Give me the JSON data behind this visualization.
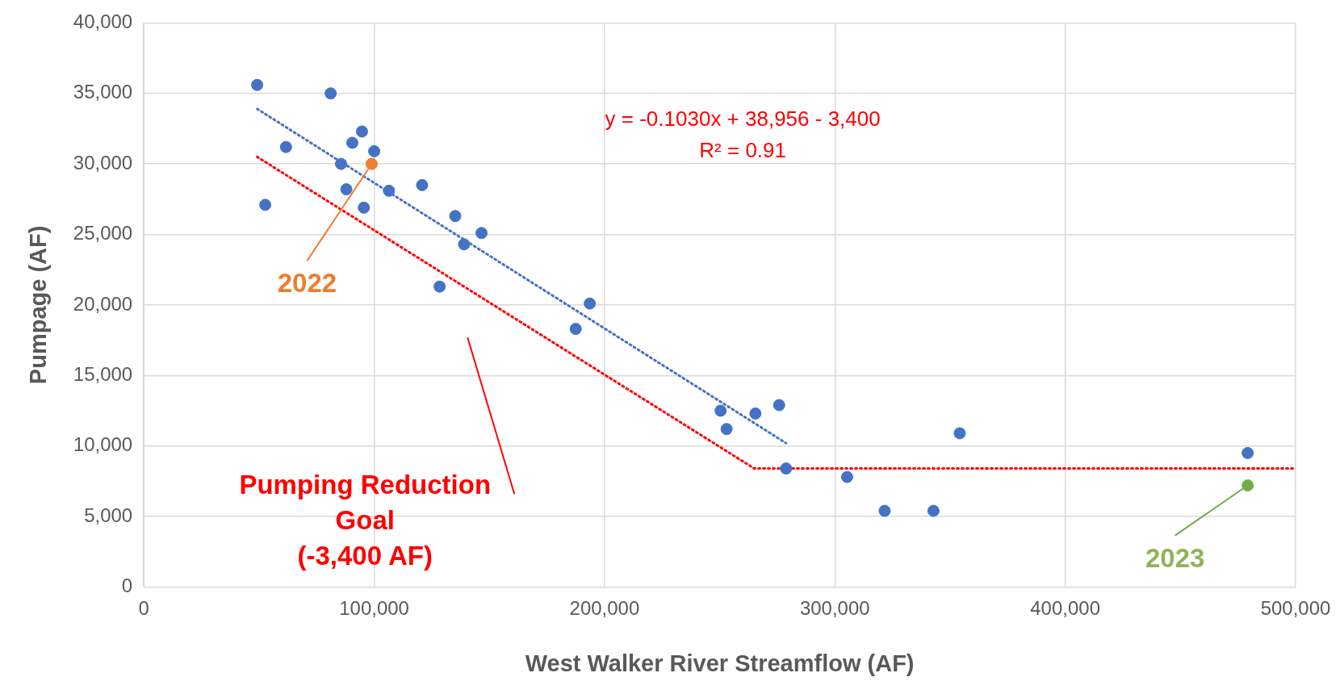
{
  "chart_data": {
    "type": "scatter",
    "xlabel": "West Walker River Streamflow (AF)",
    "ylabel": "Pumpage (AF)",
    "xlim": [
      0,
      500000
    ],
    "xticks": [
      0,
      {
        "value": 100000,
        "label": "100,000"
      },
      {
        "value": 200000,
        "label": "200,000"
      },
      {
        "value": 300000,
        "label": "300,000"
      },
      {
        "value": 400000,
        "label": "400,000"
      },
      {
        "value": 500000,
        "label": "500,000"
      }
    ],
    "ylim": [
      0,
      40000
    ],
    "yticks": [
      0,
      {
        "value": 5000,
        "label": "5,000"
      },
      {
        "value": 10000,
        "label": "10,000"
      },
      {
        "value": 15000,
        "label": "15,000"
      },
      {
        "value": 20000,
        "label": "20,000"
      },
      {
        "value": 25000,
        "label": "25,000"
      },
      {
        "value": 30000,
        "label": "30,000"
      },
      {
        "value": 35000,
        "label": "35,000"
      },
      {
        "value": 40000,
        "label": "40,000"
      }
    ],
    "grid": true,
    "marker": "circle",
    "series": [
      {
        "color": "#4472c4",
        "x": [
          49200,
          81100,
          61700,
          52700,
          94700,
          90500,
          100000,
          85600,
          87900,
          95500,
          106400,
          120800,
          135200,
          146600,
          139000,
          128400,
          193600,
          187500,
          250400,
          253000,
          265500,
          275800,
          278800,
          305300,
          321600,
          342800,
          354200,
          479200
        ],
        "values": [
          35600,
          35000,
          31200,
          27100,
          32300,
          31500,
          30900,
          30000,
          28200,
          26900,
          28100,
          28500,
          26300,
          25100,
          24300,
          21300,
          20100,
          18300,
          12500,
          11200,
          12300,
          12900,
          8400,
          7800,
          5400,
          5400,
          10900,
          9500
        ]
      },
      {
        "name": "2022",
        "color": "#ed7d31",
        "x": [
          98900
        ],
        "values": [
          30000
        ]
      },
      {
        "name": "2023",
        "color": "#70ad47",
        "x": [
          479200
        ],
        "values": [
          7200
        ]
      },
      {
        "type": "line",
        "color": "#4472c4",
        "line_style": "dotted",
        "marker": "none",
        "x": [
          49200,
          278800
        ],
        "values": [
          33900,
          10200
        ]
      },
      {
        "type": "line",
        "name": "Pumping Reduction Goal (-3,400 AF)",
        "color": "#ff0000",
        "line_style": "dotted",
        "marker": "none",
        "x": [
          49200,
          265000,
          500000
        ],
        "values": [
          30500,
          8400,
          8400
        ]
      }
    ],
    "annotations": [
      "y = -0.1030x + 38,956 - 3,400",
      "R² = 0.91"
    ]
  }
}
